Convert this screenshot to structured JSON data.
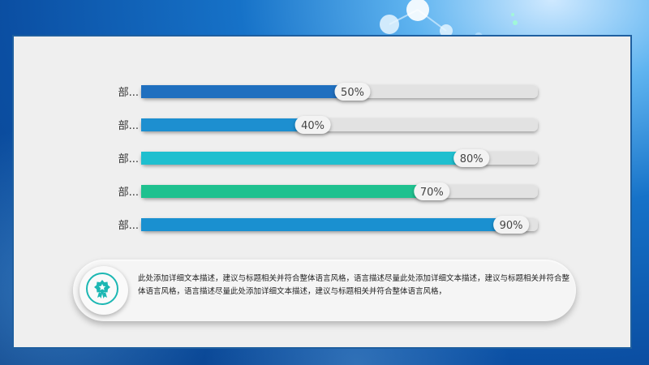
{
  "chart_data": {
    "type": "bar",
    "orientation": "horizontal",
    "categories": [
      "部...",
      "部...",
      "部...",
      "部...",
      "部..."
    ],
    "values": [
      50,
      40,
      80,
      70,
      90
    ],
    "value_labels": [
      "50%",
      "40%",
      "80%",
      "70%",
      "90%"
    ],
    "xlim": [
      0,
      100
    ],
    "colors": [
      "#1f6fbf",
      "#1d8fd0",
      "#1fbfcf",
      "#1fc18f",
      "#1a90d0"
    ],
    "track_color": "#e2e2e2",
    "grid": false
  },
  "note": {
    "icon": "award-icon",
    "text": "此处添加详细文本描述，建议与标题相关并符合整体语言风格，语言描述尽量此处添加详细文本描述，建议与标题相关并符合整体语言风格，语言描述尽量此处添加详细文本描述，建议与标题相关并符合整体语言风格，"
  }
}
